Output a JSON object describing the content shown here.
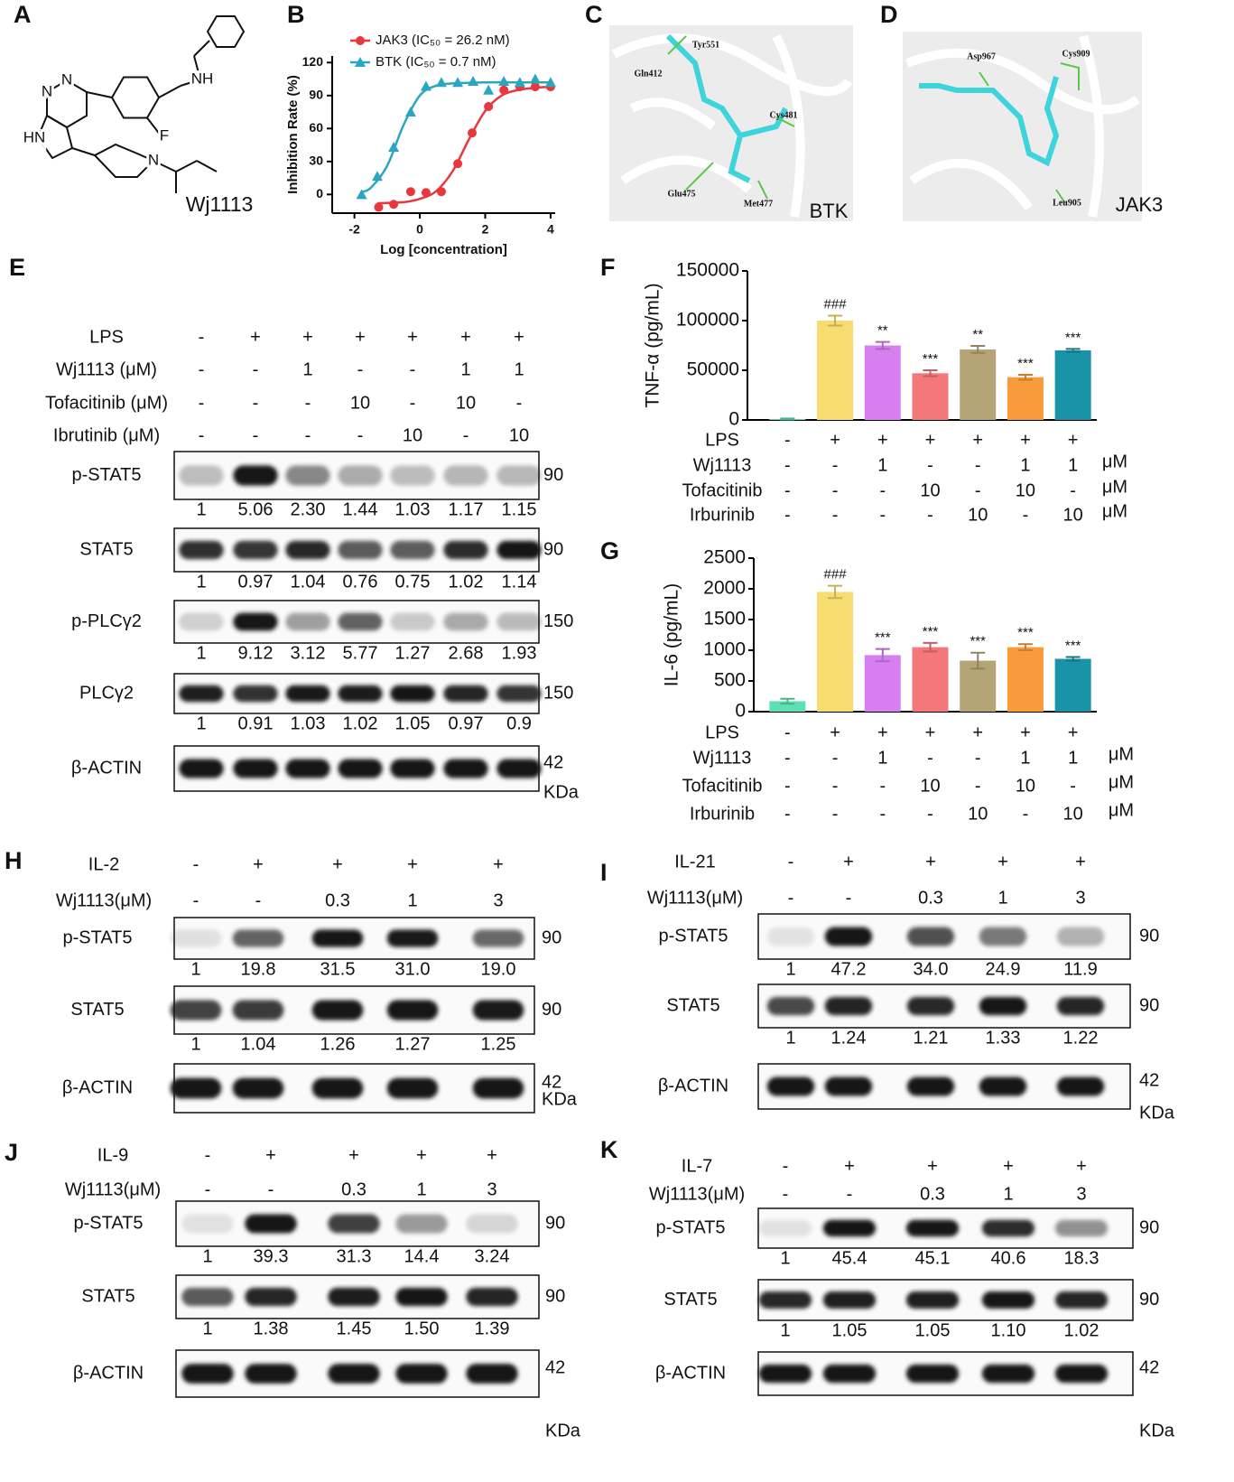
{
  "panels": {
    "A": {
      "label": "A",
      "compound": "Wj1113",
      "atoms": [
        "N",
        "N",
        "HN",
        "NH",
        "F",
        "N"
      ]
    },
    "C": {
      "label": "C",
      "residues": [
        "Tyr551",
        "Gln412",
        "Cys481",
        "Glu475",
        "Met477"
      ],
      "target": "BTK"
    },
    "D": {
      "label": "D",
      "residues": [
        "Asp967",
        "Cys909",
        "Leu905"
      ],
      "target": "JAK3"
    },
    "E": {
      "label": "E",
      "treatments": [
        {
          "name": "LPS",
          "values": [
            "-",
            "+",
            "+",
            "+",
            "+",
            "+",
            "+"
          ]
        },
        {
          "name": "Wj1113 (μM)",
          "values": [
            "-",
            "-",
            "1",
            "-",
            "-",
            "1",
            "1"
          ]
        },
        {
          "name": "Tofacitinib (μM)",
          "values": [
            "-",
            "-",
            "-",
            "10",
            "-",
            "10",
            "-"
          ]
        },
        {
          "name": "Ibrutinib (μM)",
          "values": [
            "-",
            "-",
            "-",
            "-",
            "10",
            "-",
            "10"
          ]
        }
      ],
      "rows": [
        {
          "name": "p-STAT5",
          "quant": [
            "1",
            "5.06",
            "2.30",
            "1.44",
            "1.03",
            "1.17",
            "1.15"
          ],
          "size": "90"
        },
        {
          "name": "STAT5",
          "quant": [
            "1",
            "0.97",
            "1.04",
            "0.76",
            "0.75",
            "1.02",
            "1.14"
          ],
          "size": "90"
        },
        {
          "name": "p-PLCγ2",
          "quant": [
            "1",
            "9.12",
            "3.12",
            "5.77",
            "1.27",
            "2.68",
            "1.93"
          ],
          "size": "150"
        },
        {
          "name": "PLCγ2",
          "quant": [
            "1",
            "0.91",
            "1.03",
            "1.02",
            "1.05",
            "0.97",
            "0.9"
          ],
          "size": "150"
        },
        {
          "name": "β-ACTIN",
          "size": "42",
          "unit": "KDa"
        }
      ]
    },
    "H": {
      "label": "H",
      "treatments": [
        {
          "name": "IL-2",
          "values": [
            "-",
            "+",
            "+",
            "+",
            "+"
          ]
        },
        {
          "name": "Wj1113(μM)",
          "values": [
            "-",
            "-",
            "0.3",
            "1",
            "3"
          ]
        }
      ],
      "rows": [
        {
          "name": "p-STAT5",
          "quant": [
            "1",
            "19.8",
            "31.5",
            "31.0",
            "19.0"
          ],
          "size": "90"
        },
        {
          "name": "STAT5",
          "quant": [
            "1",
            "1.04",
            "1.26",
            "1.27",
            "1.25"
          ],
          "size": "90"
        },
        {
          "name": "β-ACTIN",
          "size": "42",
          "unit": "KDa"
        }
      ]
    },
    "I": {
      "label": "I",
      "treatments": [
        {
          "name": "IL-21",
          "values": [
            "-",
            "+",
            "+",
            "+",
            "+"
          ]
        },
        {
          "name": "Wj1113(μM)",
          "values": [
            "-",
            "-",
            "0.3",
            "1",
            "3"
          ]
        }
      ],
      "rows": [
        {
          "name": "p-STAT5",
          "quant": [
            "1",
            "47.2",
            "34.0",
            "24.9",
            "11.9"
          ],
          "size": "90"
        },
        {
          "name": "STAT5",
          "quant": [
            "1",
            "1.24",
            "1.21",
            "1.33",
            "1.22"
          ],
          "size": "90"
        },
        {
          "name": "β-ACTIN",
          "size": "42",
          "unit": "KDa"
        }
      ]
    },
    "J": {
      "label": "J",
      "treatments": [
        {
          "name": "IL-9",
          "values": [
            "-",
            "+",
            "+",
            "+",
            "+"
          ]
        },
        {
          "name": "Wj1113(μM)",
          "values": [
            "-",
            "-",
            "0.3",
            "1",
            "3"
          ]
        }
      ],
      "rows": [
        {
          "name": "p-STAT5",
          "quant": [
            "1",
            "39.3",
            "31.3",
            "14.4",
            "3.24"
          ],
          "size": "90"
        },
        {
          "name": "STAT5",
          "quant": [
            "1",
            "1.38",
            "1.45",
            "1.50",
            "1.39"
          ],
          "size": "90"
        },
        {
          "name": "β-ACTIN",
          "size": "42",
          "unit": "KDa"
        }
      ]
    },
    "K": {
      "label": "K",
      "treatments": [
        {
          "name": "IL-7",
          "values": [
            "-",
            "+",
            "+",
            "+",
            "+"
          ]
        },
        {
          "name": "Wj1113(μM)",
          "values": [
            "-",
            "-",
            "0.3",
            "1",
            "3"
          ]
        }
      ],
      "rows": [
        {
          "name": "p-STAT5",
          "quant": [
            "1",
            "45.4",
            "45.1",
            "40.6",
            "18.3"
          ],
          "size": "90"
        },
        {
          "name": "STAT5",
          "quant": [
            "1",
            "1.05",
            "1.05",
            "1.10",
            "1.02"
          ],
          "size": "90"
        },
        {
          "name": "β-ACTIN",
          "size": "42",
          "unit": "KDa"
        }
      ]
    }
  },
  "chart_data": [
    {
      "panel": "B",
      "type": "line",
      "x_label": "Log [concentration]",
      "y_label": "Inhibition Rate (%)",
      "xlim": [
        -2.68,
        4.14
      ],
      "ylim": [
        -17,
        126
      ],
      "xticks": [
        -2,
        0,
        2,
        4
      ],
      "yticks": [
        0,
        30,
        60,
        90,
        120
      ],
      "legend": "upper left",
      "series": [
        {
          "name": "JAK3 (IC₅₀ = 26.2 nM)",
          "color": "#e8383d",
          "marker": "circle",
          "x": [
            -1.26,
            -0.8,
            -0.28,
            0.19,
            0.66,
            1.16,
            1.6,
            2.1,
            2.57,
            3.06,
            3.53,
            4.0
          ],
          "values": [
            -11.6,
            -9,
            2.5,
            1.7,
            2.5,
            28,
            56,
            80,
            95,
            98,
            98,
            98
          ],
          "curve_x": [
            -1.3,
            -0.5,
            0,
            0.5,
            1,
            1.5,
            2,
            2.5,
            3,
            3.5,
            4
          ],
          "curve_values": [
            -8,
            -7,
            -4,
            3,
            21,
            50,
            76,
            90,
            95,
            97,
            98
          ]
        },
        {
          "name": "BTK (IC₅₀ = 0.7 nM)",
          "color": "#2aa6c0",
          "marker": "triangle",
          "x": [
            -1.78,
            -1.3,
            -0.8,
            -0.28,
            0.19,
            0.66,
            1.16,
            1.63,
            2.1,
            2.57,
            3.06,
            3.53,
            4.0
          ],
          "values": [
            0,
            16.5,
            43,
            75,
            98.5,
            102,
            102,
            103,
            95,
            103,
            102,
            105,
            102
          ],
          "curve_x": [
            -1.8,
            -1.5,
            -1,
            -0.5,
            0,
            0.5,
            1,
            2,
            3,
            4
          ],
          "curve_values": [
            2,
            6,
            26,
            63,
            90,
            99,
            101,
            102,
            102,
            102
          ]
        }
      ]
    },
    {
      "panel": "F",
      "type": "bar",
      "y_label": "TNF-α (pg/mL)",
      "values": [
        1000,
        100000,
        75000,
        47000,
        71000,
        43000,
        70000
      ],
      "errors": [
        500,
        5000,
        3500,
        3000,
        3500,
        2500,
        1500
      ],
      "colors": [
        "#5ee0b0",
        "#f7dc6f",
        "#d77ff0",
        "#f4787a",
        "#b5a576",
        "#f99b3b",
        "#1a93a8"
      ],
      "annotations": [
        null,
        "###",
        "**",
        "***",
        "**",
        "***",
        "***"
      ],
      "ylim": [
        0,
        150000
      ],
      "yticks": [
        0,
        50000,
        100000,
        150000
      ],
      "conditions": [
        {
          "name": "LPS",
          "values": [
            "-",
            "+",
            "+",
            "+",
            "+",
            "+",
            "+"
          ]
        },
        {
          "name": "Wj1113",
          "values": [
            "-",
            "-",
            "1",
            "-",
            "-",
            "1",
            "1"
          ],
          "unit": "μM"
        },
        {
          "name": "Tofacitinib",
          "values": [
            "-",
            "-",
            "-",
            "10",
            "-",
            "10",
            "-"
          ],
          "unit": "μM"
        },
        {
          "name": "Irburinib",
          "values": [
            "-",
            "-",
            "-",
            "-",
            "10",
            "-",
            "10"
          ],
          "unit": "μM"
        }
      ]
    },
    {
      "panel": "G",
      "type": "bar",
      "y_label": "IL-6 (pg/mL)",
      "values": [
        170,
        1950,
        920,
        1050,
        830,
        1050,
        860
      ],
      "errors": [
        40,
        100,
        100,
        70,
        130,
        50,
        30
      ],
      "colors": [
        "#5ee0b0",
        "#f7dc6f",
        "#d77ff0",
        "#f4787a",
        "#b5a576",
        "#f99b3b",
        "#1a93a8"
      ],
      "annotations": [
        null,
        "###",
        "***",
        "***",
        "***",
        "***",
        "***"
      ],
      "ylim": [
        0,
        2500
      ],
      "yticks": [
        0,
        500,
        1000,
        1500,
        2000,
        2500
      ],
      "conditions": [
        {
          "name": "LPS",
          "values": [
            "-",
            "+",
            "+",
            "+",
            "+",
            "+",
            "+"
          ]
        },
        {
          "name": "Wj1113",
          "values": [
            "-",
            "-",
            "1",
            "-",
            "-",
            "1",
            "1"
          ],
          "unit": "μM"
        },
        {
          "name": "Tofacitinib",
          "values": [
            "-",
            "-",
            "-",
            "10",
            "-",
            "10",
            "-"
          ],
          "unit": "μM"
        },
        {
          "name": "Irburinib",
          "values": [
            "-",
            "-",
            "-",
            "-",
            "10",
            "-",
            "10"
          ],
          "unit": "μM"
        }
      ]
    }
  ]
}
